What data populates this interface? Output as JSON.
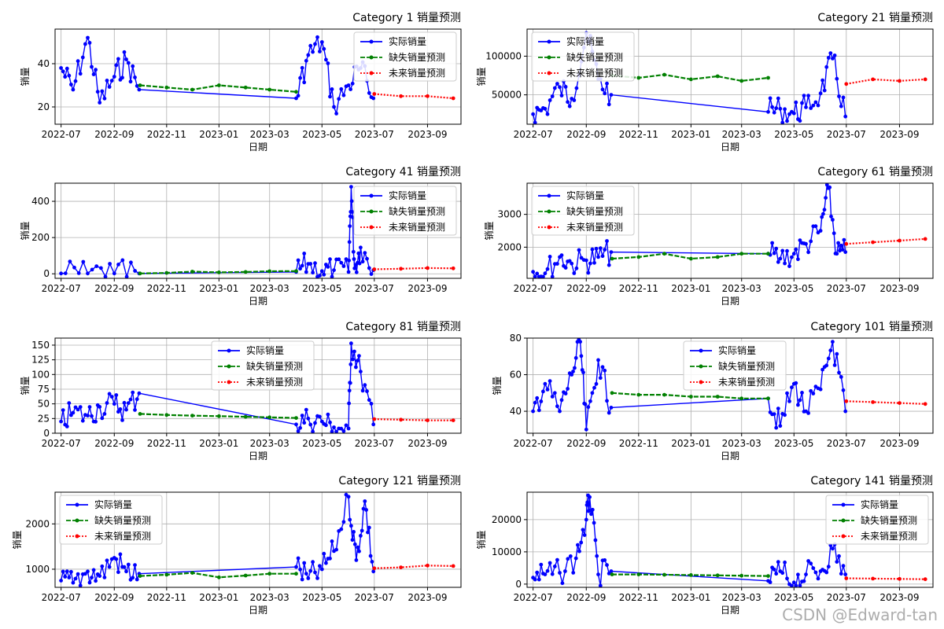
{
  "watermark": "CSDN @Edward-tan",
  "legend_labels": [
    "实际销量",
    "缺失销量预测",
    "未来销量预测"
  ],
  "colors": {
    "actual": "#0000ff",
    "missing": "#008000",
    "future": "#ff0000",
    "grid": "#b0b0b0",
    "axis": "#000000"
  },
  "chart_data": [
    {
      "type": "line",
      "title": "Category 1 销量预测",
      "xlabel": "日期",
      "ylabel": "销量",
      "xlim": [
        "2022-06-24",
        "2023-10-10"
      ],
      "xticks": [
        "2022-07",
        "2022-09",
        "2022-11",
        "2023-01",
        "2023-03",
        "2023-05",
        "2023-07",
        "2023-09"
      ],
      "ylim": [
        12,
        56
      ],
      "yticks": [
        20,
        40
      ],
      "legend_loc": "upper right",
      "grid": true,
      "series": [
        {
          "name": "实际销量",
          "style": "solid",
          "x": [
            "2022-07-01",
            "2022-07-15",
            "2022-08-01",
            "2022-08-15",
            "2022-09-01",
            "2022-09-15",
            "2022-09-30",
            "2023-04-01",
            "2023-04-15",
            "2023-05-01",
            "2023-05-15",
            "2023-06-01",
            "2023-06-15",
            "2023-06-30"
          ],
          "y": [
            38,
            28,
            52,
            22,
            34,
            42,
            28,
            24,
            44,
            50,
            20,
            30,
            38,
            24
          ]
        },
        {
          "name": "缺失销量预测",
          "style": "dashed",
          "x": [
            "2022-10-01",
            "2022-11-01",
            "2022-12-01",
            "2023-01-01",
            "2023-02-01",
            "2023-03-01",
            "2023-04-01"
          ],
          "y": [
            30,
            29,
            28,
            30,
            29,
            28,
            27
          ]
        },
        {
          "name": "未来销量预测",
          "style": "dotted",
          "x": [
            "2023-07-01",
            "2023-08-01",
            "2023-09-01",
            "2023-10-01"
          ],
          "y": [
            26,
            25,
            25,
            24
          ]
        }
      ]
    },
    {
      "type": "line",
      "title": "Category 21 销量预测",
      "xlabel": "日期",
      "ylabel": "销量",
      "xlim": [
        "2022-06-24",
        "2023-10-10"
      ],
      "xticks": [
        "2022-07",
        "2022-09",
        "2022-11",
        "2023-01",
        "2023-03",
        "2023-05",
        "2023-07",
        "2023-09"
      ],
      "ylim": [
        12000,
        135000
      ],
      "yticks": [
        50000,
        100000
      ],
      "legend_loc": "upper left",
      "grid": true,
      "series": [
        {
          "name": "实际销量",
          "style": "solid",
          "x": [
            "2022-07-01",
            "2022-07-15",
            "2022-08-01",
            "2022-08-15",
            "2022-09-01",
            "2022-09-15",
            "2022-09-30",
            "2023-04-01",
            "2023-04-15",
            "2023-05-01",
            "2023-05-15",
            "2023-06-01",
            "2023-06-15",
            "2023-06-30"
          ],
          "y": [
            25000,
            32000,
            60000,
            45000,
            130000,
            70000,
            50000,
            28000,
            32000,
            26000,
            34000,
            52000,
            97000,
            22000
          ]
        },
        {
          "name": "缺失销量预测",
          "style": "dashed",
          "x": [
            "2022-10-01",
            "2022-11-01",
            "2022-12-01",
            "2023-01-01",
            "2023-02-01",
            "2023-03-01",
            "2023-04-01"
          ],
          "y": [
            75000,
            72000,
            76000,
            70000,
            74000,
            68000,
            72000
          ]
        },
        {
          "name": "未来销量预测",
          "style": "dotted",
          "x": [
            "2023-07-01",
            "2023-08-01",
            "2023-09-01",
            "2023-10-01"
          ],
          "y": [
            64000,
            70000,
            68000,
            70000
          ]
        }
      ]
    },
    {
      "type": "line",
      "title": "Category 41 销量预测",
      "xlabel": "日期",
      "ylabel": "销量",
      "xlim": [
        "2022-06-24",
        "2023-10-10"
      ],
      "xticks": [
        "2022-07",
        "2022-09",
        "2022-11",
        "2023-01",
        "2023-03",
        "2023-05",
        "2023-07",
        "2023-09"
      ],
      "ylim": [
        -25,
        500
      ],
      "yticks": [
        0,
        200,
        400
      ],
      "legend_loc": "upper right",
      "grid": true,
      "series": [
        {
          "name": "实际销量",
          "style": "solid",
          "x": [
            "2022-07-01",
            "2022-08-01",
            "2022-09-01",
            "2022-09-30",
            "2023-04-01",
            "2023-04-15",
            "2023-05-01",
            "2023-05-15",
            "2023-06-01",
            "2023-06-04",
            "2023-06-08",
            "2023-06-15",
            "2023-06-30"
          ],
          "y": [
            2,
            2,
            2,
            2,
            10,
            55,
            15,
            20,
            10,
            480,
            30,
            145,
            20
          ]
        },
        {
          "name": "缺失销量预测",
          "style": "dashed",
          "x": [
            "2022-10-01",
            "2022-11-01",
            "2022-12-01",
            "2023-01-01",
            "2023-02-01",
            "2023-03-01",
            "2023-04-01"
          ],
          "y": [
            2,
            5,
            12,
            8,
            10,
            14,
            15
          ]
        },
        {
          "name": "未来销量预测",
          "style": "dotted",
          "x": [
            "2023-07-01",
            "2023-08-01",
            "2023-09-01",
            "2023-10-01"
          ],
          "y": [
            25,
            28,
            32,
            30
          ]
        }
      ]
    },
    {
      "type": "line",
      "title": "Category 61 销量预测",
      "xlabel": "日期",
      "ylabel": "销量",
      "xlim": [
        "2022-06-24",
        "2023-10-10"
      ],
      "xticks": [
        "2022-07",
        "2022-09",
        "2022-11",
        "2023-01",
        "2023-03",
        "2023-05",
        "2023-07",
        "2023-09"
      ],
      "ylim": [
        1050,
        3950
      ],
      "yticks": [
        2000,
        3000
      ],
      "legend_loc": "upper left",
      "grid": true,
      "series": [
        {
          "name": "实际销量",
          "style": "solid",
          "x": [
            "2022-07-01",
            "2022-07-15",
            "2022-08-01",
            "2022-08-15",
            "2022-09-01",
            "2022-09-15",
            "2022-09-30",
            "2023-04-01",
            "2023-04-15",
            "2023-05-01",
            "2023-05-15",
            "2023-06-01",
            "2023-06-10",
            "2023-06-20",
            "2023-06-30"
          ],
          "y": [
            1250,
            1200,
            1700,
            1500,
            1600,
            1700,
            1850,
            1800,
            1650,
            1800,
            2100,
            2500,
            3800,
            1800,
            1850
          ]
        },
        {
          "name": "缺失销量预测",
          "style": "dashed",
          "x": [
            "2022-10-01",
            "2022-11-01",
            "2022-12-01",
            "2023-01-01",
            "2023-02-01",
            "2023-03-01",
            "2023-04-01"
          ],
          "y": [
            1650,
            1700,
            1800,
            1650,
            1700,
            1800,
            1800
          ]
        },
        {
          "name": "未来销量预测",
          "style": "dotted",
          "x": [
            "2023-07-01",
            "2023-08-01",
            "2023-09-01",
            "2023-10-01"
          ],
          "y": [
            2100,
            2150,
            2200,
            2250
          ]
        }
      ]
    },
    {
      "type": "line",
      "title": "Category 81 销量预测",
      "xlabel": "日期",
      "ylabel": "销量",
      "xlim": [
        "2022-06-24",
        "2023-10-10"
      ],
      "xticks": [
        "2022-07",
        "2022-09",
        "2022-11",
        "2023-01",
        "2023-03",
        "2023-05",
        "2023-07",
        "2023-09"
      ],
      "ylim": [
        0,
        162
      ],
      "yticks": [
        0,
        25,
        50,
        75,
        100,
        125,
        150
      ],
      "legend_loc": "upper center",
      "grid": true,
      "series": [
        {
          "name": "实际销量",
          "style": "solid",
          "x": [
            "2022-07-01",
            "2022-07-15",
            "2022-08-01",
            "2022-08-15",
            "2022-09-01",
            "2022-09-15",
            "2022-09-30",
            "2023-04-01",
            "2023-04-15",
            "2023-05-01",
            "2023-05-15",
            "2023-06-01",
            "2023-06-04",
            "2023-06-15",
            "2023-06-30"
          ],
          "y": [
            20,
            35,
            30,
            45,
            50,
            40,
            68,
            15,
            25,
            20,
            10,
            8,
            153,
            105,
            15
          ]
        },
        {
          "name": "缺失销量预测",
          "style": "dashed",
          "x": [
            "2022-10-01",
            "2022-11-01",
            "2022-12-01",
            "2023-01-01",
            "2023-02-01",
            "2023-03-01",
            "2023-04-01"
          ],
          "y": [
            33,
            31,
            30,
            29,
            28,
            27,
            26
          ]
        },
        {
          "name": "未来销量预测",
          "style": "dotted",
          "x": [
            "2023-07-01",
            "2023-08-01",
            "2023-09-01",
            "2023-10-01"
          ],
          "y": [
            24,
            23,
            22,
            22
          ]
        }
      ]
    },
    {
      "type": "line",
      "title": "Category 101 销量预测",
      "xlabel": "日期",
      "ylabel": "销量",
      "xlim": [
        "2022-06-24",
        "2023-10-10"
      ],
      "xticks": [
        "2022-07",
        "2022-09",
        "2022-11",
        "2023-01",
        "2023-03",
        "2023-05",
        "2023-07",
        "2023-09"
      ],
      "ylim": [
        28,
        80
      ],
      "yticks": [
        40,
        60,
        80
      ],
      "legend_loc": "upper center",
      "grid": true,
      "series": [
        {
          "name": "实际销量",
          "style": "solid",
          "x": [
            "2022-07-01",
            "2022-07-15",
            "2022-08-01",
            "2022-08-15",
            "2022-08-25",
            "2022-09-01",
            "2022-09-15",
            "2022-09-30",
            "2023-04-01",
            "2023-04-15",
            "2023-05-01",
            "2023-05-15",
            "2023-06-01",
            "2023-06-15",
            "2023-06-30"
          ],
          "y": [
            40,
            55,
            40,
            60,
            78,
            30,
            68,
            42,
            47,
            32,
            55,
            40,
            52,
            78,
            40
          ]
        },
        {
          "name": "缺失销量预测",
          "style": "dashed",
          "x": [
            "2022-10-01",
            "2022-11-01",
            "2022-12-01",
            "2023-01-01",
            "2023-02-01",
            "2023-03-01",
            "2023-04-01"
          ],
          "y": [
            50,
            49,
            49,
            48,
            48,
            47,
            47
          ]
        },
        {
          "name": "未来销量预测",
          "style": "dotted",
          "x": [
            "2023-07-01",
            "2023-08-01",
            "2023-09-01",
            "2023-10-01"
          ],
          "y": [
            45.5,
            45,
            44.5,
            44
          ]
        }
      ]
    },
    {
      "type": "line",
      "title": "Category 121 销量预测",
      "xlabel": "日期",
      "ylabel": "销量",
      "xlim": [
        "2022-06-24",
        "2023-10-10"
      ],
      "xticks": [
        "2022-07",
        "2022-09",
        "2022-11",
        "2023-01",
        "2023-03",
        "2023-05",
        "2023-07",
        "2023-09"
      ],
      "ylim": [
        600,
        2700
      ],
      "yticks": [
        1000,
        2000
      ],
      "legend_loc": "upper left",
      "grid": true,
      "series": [
        {
          "name": "实际销量",
          "style": "solid",
          "x": [
            "2022-07-01",
            "2022-07-15",
            "2022-08-01",
            "2022-08-15",
            "2022-09-01",
            "2022-09-15",
            "2022-09-30",
            "2023-04-01",
            "2023-04-15",
            "2023-05-01",
            "2023-05-15",
            "2023-06-01",
            "2023-06-10",
            "2023-06-20",
            "2023-06-30"
          ],
          "y": [
            750,
            700,
            950,
            850,
            1250,
            950,
            900,
            1050,
            800,
            1000,
            1400,
            2600,
            1200,
            2500,
            950
          ]
        },
        {
          "name": "缺失销量预测",
          "style": "dashed",
          "x": [
            "2022-10-01",
            "2022-11-01",
            "2022-12-01",
            "2023-01-01",
            "2023-02-01",
            "2023-03-01",
            "2023-04-01"
          ],
          "y": [
            850,
            880,
            920,
            820,
            860,
            900,
            900
          ]
        },
        {
          "name": "未来销量预测",
          "style": "dotted",
          "x": [
            "2023-07-01",
            "2023-08-01",
            "2023-09-01",
            "2023-10-01"
          ],
          "y": [
            1020,
            1040,
            1080,
            1070
          ]
        }
      ]
    },
    {
      "type": "line",
      "title": "Category 141 销量预测",
      "xlabel": "日期",
      "ylabel": "销量",
      "xlim": [
        "2022-06-24",
        "2023-10-10"
      ],
      "xticks": [
        "2022-07",
        "2022-09",
        "2022-11",
        "2023-01",
        "2023-03",
        "2023-05",
        "2023-07",
        "2023-09"
      ],
      "ylim": [
        -1000,
        28500
      ],
      "yticks": [
        0,
        10000,
        20000
      ],
      "legend_loc": "upper right",
      "grid": true,
      "series": [
        {
          "name": "实际销量",
          "style": "solid",
          "x": [
            "2022-07-01",
            "2022-07-15",
            "2022-08-01",
            "2022-08-20",
            "2022-09-01",
            "2022-09-05",
            "2022-09-15",
            "2022-09-30",
            "2023-04-01",
            "2023-04-15",
            "2023-05-01",
            "2023-05-15",
            "2023-06-01",
            "2023-06-15",
            "2023-06-30"
          ],
          "y": [
            2000,
            3000,
            3500,
            8000,
            20000,
            27000,
            3000,
            4000,
            1000,
            4000,
            500,
            3000,
            4000,
            11000,
            3000
          ]
        },
        {
          "name": "缺失销量预测",
          "style": "dashed",
          "x": [
            "2022-10-01",
            "2022-11-01",
            "2022-12-01",
            "2023-01-01",
            "2023-02-01",
            "2023-03-01",
            "2023-04-01"
          ],
          "y": [
            3000,
            3000,
            2900,
            2800,
            2700,
            2600,
            2500
          ]
        },
        {
          "name": "未来销量预测",
          "style": "dotted",
          "x": [
            "2023-07-01",
            "2023-08-01",
            "2023-09-01",
            "2023-10-01"
          ],
          "y": [
            1800,
            1700,
            1600,
            1500
          ]
        }
      ]
    }
  ]
}
